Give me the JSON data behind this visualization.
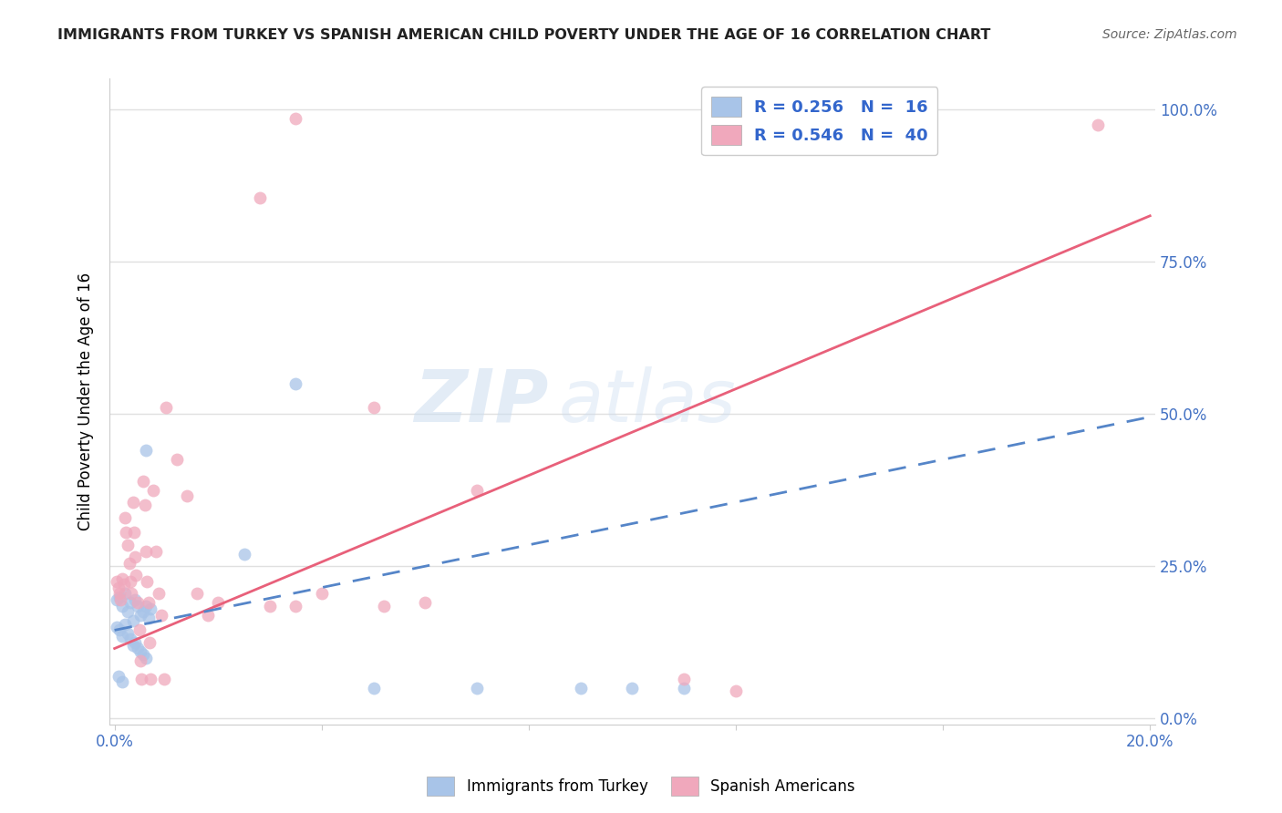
{
  "title": "IMMIGRANTS FROM TURKEY VS SPANISH AMERICAN CHILD POVERTY UNDER THE AGE OF 16 CORRELATION CHART",
  "source": "Source: ZipAtlas.com",
  "ylabel": "Child Poverty Under the Age of 16",
  "xlim": [
    0.0,
    0.2
  ],
  "ylim": [
    0.0,
    1.05
  ],
  "right_yticks": [
    0.0,
    0.25,
    0.5,
    0.75,
    1.0
  ],
  "right_yticklabels": [
    "0.0%",
    "25.0%",
    "50.0%",
    "75.0%",
    "100.0%"
  ],
  "xticks": [
    0.0,
    0.04,
    0.08,
    0.12,
    0.16,
    0.2
  ],
  "xticklabels": [
    "0.0%",
    "",
    "",
    "",
    "",
    "20.0%"
  ],
  "watermark": "ZIPatlas",
  "blue_color": "#a8c4e8",
  "pink_color": "#f0a8bc",
  "blue_line_color": "#5585c8",
  "pink_line_color": "#e8607a",
  "blue_scatter": [
    [
      0.0005,
      0.195
    ],
    [
      0.001,
      0.2
    ],
    [
      0.0015,
      0.185
    ],
    [
      0.002,
      0.205
    ],
    [
      0.0025,
      0.175
    ],
    [
      0.003,
      0.19
    ],
    [
      0.0035,
      0.16
    ],
    [
      0.004,
      0.195
    ],
    [
      0.0045,
      0.185
    ],
    [
      0.005,
      0.17
    ],
    [
      0.0055,
      0.175
    ],
    [
      0.006,
      0.185
    ],
    [
      0.0065,
      0.165
    ],
    [
      0.007,
      0.18
    ],
    [
      0.0005,
      0.15
    ],
    [
      0.001,
      0.145
    ],
    [
      0.0015,
      0.135
    ],
    [
      0.002,
      0.155
    ],
    [
      0.0025,
      0.14
    ],
    [
      0.003,
      0.13
    ],
    [
      0.0035,
      0.12
    ],
    [
      0.004,
      0.125
    ],
    [
      0.0045,
      0.115
    ],
    [
      0.005,
      0.11
    ],
    [
      0.0055,
      0.105
    ],
    [
      0.006,
      0.1
    ],
    [
      0.0008,
      0.07
    ],
    [
      0.0015,
      0.06
    ],
    [
      0.006,
      0.44
    ],
    [
      0.025,
      0.27
    ],
    [
      0.05,
      0.05
    ],
    [
      0.07,
      0.05
    ],
    [
      0.09,
      0.05
    ],
    [
      0.1,
      0.05
    ],
    [
      0.11,
      0.05
    ],
    [
      0.035,
      0.55
    ]
  ],
  "pink_scatter": [
    [
      0.0005,
      0.225
    ],
    [
      0.0008,
      0.215
    ],
    [
      0.001,
      0.205
    ],
    [
      0.0012,
      0.195
    ],
    [
      0.0015,
      0.23
    ],
    [
      0.0018,
      0.22
    ],
    [
      0.002,
      0.33
    ],
    [
      0.0022,
      0.305
    ],
    [
      0.0025,
      0.285
    ],
    [
      0.0028,
      0.255
    ],
    [
      0.003,
      0.225
    ],
    [
      0.0032,
      0.205
    ],
    [
      0.0035,
      0.355
    ],
    [
      0.0038,
      0.305
    ],
    [
      0.004,
      0.265
    ],
    [
      0.0042,
      0.235
    ],
    [
      0.0045,
      0.19
    ],
    [
      0.0048,
      0.145
    ],
    [
      0.005,
      0.095
    ],
    [
      0.0052,
      0.065
    ],
    [
      0.0055,
      0.39
    ],
    [
      0.0058,
      0.35
    ],
    [
      0.006,
      0.275
    ],
    [
      0.0062,
      0.225
    ],
    [
      0.0065,
      0.19
    ],
    [
      0.0068,
      0.125
    ],
    [
      0.007,
      0.065
    ],
    [
      0.0075,
      0.375
    ],
    [
      0.008,
      0.275
    ],
    [
      0.0085,
      0.205
    ],
    [
      0.009,
      0.17
    ],
    [
      0.0095,
      0.065
    ],
    [
      0.01,
      0.51
    ],
    [
      0.012,
      0.425
    ],
    [
      0.014,
      0.365
    ],
    [
      0.016,
      0.205
    ],
    [
      0.018,
      0.17
    ],
    [
      0.02,
      0.19
    ],
    [
      0.03,
      0.185
    ],
    [
      0.035,
      0.185
    ],
    [
      0.04,
      0.205
    ],
    [
      0.05,
      0.51
    ],
    [
      0.052,
      0.185
    ],
    [
      0.06,
      0.19
    ],
    [
      0.07,
      0.375
    ],
    [
      0.11,
      0.065
    ],
    [
      0.12,
      0.045
    ],
    [
      0.035,
      0.985
    ],
    [
      0.028,
      0.855
    ],
    [
      0.19,
      0.975
    ]
  ],
  "blue_R": 0.256,
  "blue_N": 16,
  "pink_R": 0.546,
  "pink_N": 40,
  "background_color": "#ffffff",
  "grid_color": "#e0e0e0",
  "pink_line_x": [
    0.0,
    0.2
  ],
  "pink_line_y": [
    0.115,
    0.825
  ],
  "blue_line_x": [
    0.0,
    0.2
  ],
  "blue_line_y": [
    0.145,
    0.495
  ]
}
